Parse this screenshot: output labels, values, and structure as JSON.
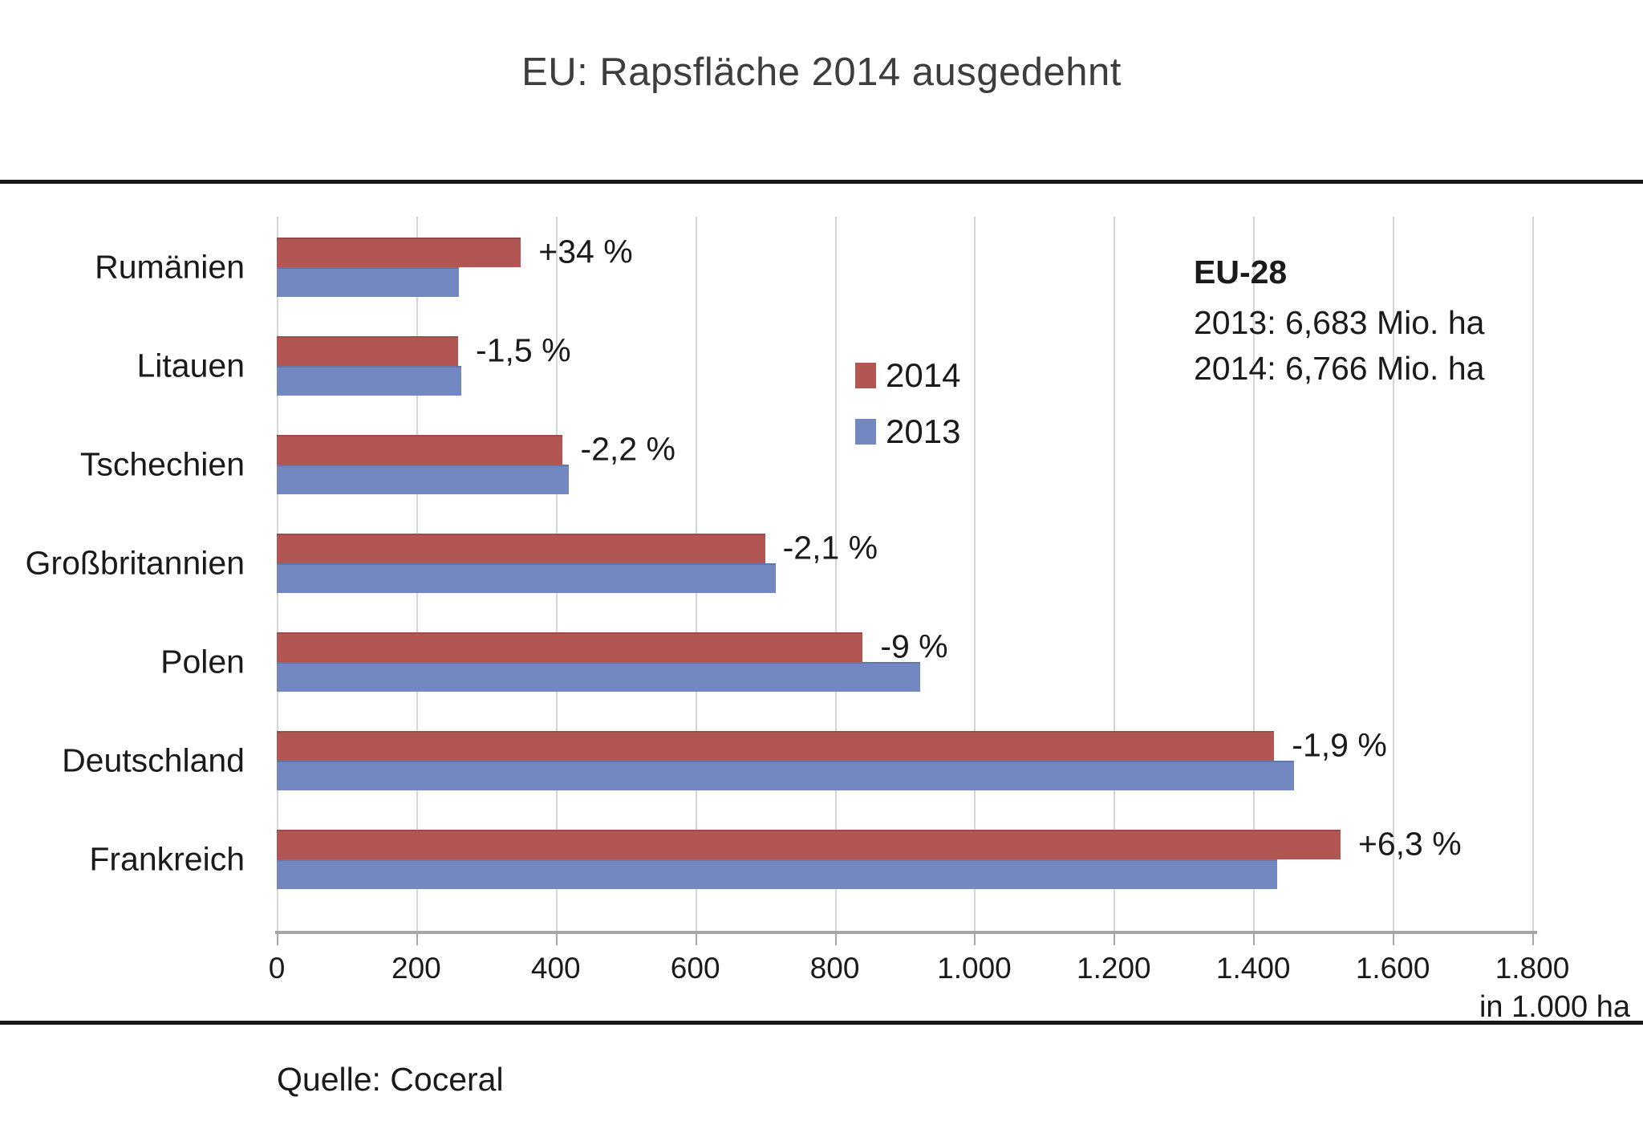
{
  "title": "EU: Rapsfläche 2014 ausgedehnt",
  "source": "Quelle: Coceral",
  "axis": {
    "unit_label": "in 1.000 ha",
    "tick_labels": [
      "0",
      "200",
      "400",
      "600",
      "800",
      "1.000",
      "1.200",
      "1.400",
      "1.600",
      "1.800"
    ],
    "min": 0,
    "max": 1800
  },
  "legend": {
    "items": [
      {
        "label": "2014",
        "color": "#b15653"
      },
      {
        "label": "2013",
        "color": "#7388c1"
      }
    ]
  },
  "annotation": {
    "title": "EU-28",
    "line1": "2013: 6,683 Mio. ha",
    "line2": "2014: 6,766 Mio. ha"
  },
  "colors": {
    "series_2014": "#b15653",
    "series_2013": "#7388c1",
    "bar_edge": "rgba(0,0,0,0.12)",
    "gridline": "#d5d5d5",
    "axis_line": "#a6a6a6",
    "rule": "#171717",
    "title_text": "#3d3d3d",
    "body_text": "#1a1a1a"
  },
  "chart_data": {
    "type": "bar",
    "orientation": "horizontal",
    "title": "EU: Rapsfläche 2014 ausgedehnt",
    "xlabel": "in 1.000 ha",
    "xlim": [
      0,
      1800
    ],
    "xtick_step": 200,
    "grid": true,
    "legend_position": "center-left of plot",
    "categories": [
      "Rumänien",
      "Litauen",
      "Tschechien",
      "Großbritannien",
      "Polen",
      "Deutschland",
      "Frankreich"
    ],
    "series": [
      {
        "name": "2014",
        "color": "#b15653",
        "values": [
          350,
          260,
          410,
          700,
          840,
          1430,
          1525
        ]
      },
      {
        "name": "2013",
        "color": "#7388c1",
        "values": [
          261,
          264,
          419,
          715,
          923,
          1458,
          1434
        ]
      }
    ],
    "change_labels": [
      "+34 %",
      "-1,5 %",
      "-2,2 %",
      "-2,1 %",
      "-9 %",
      "-1,9 %",
      "+6,3 %"
    ]
  }
}
